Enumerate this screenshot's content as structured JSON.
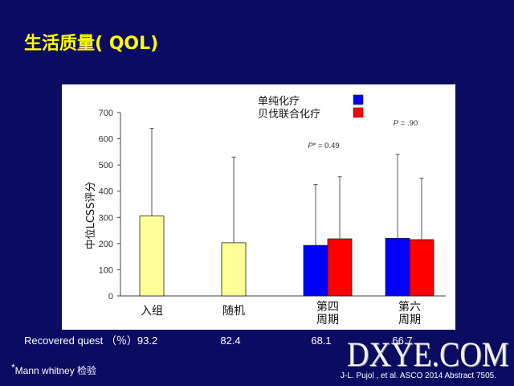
{
  "slide": {
    "title": "生活质量( QOL)",
    "colors": {
      "background": "#0b0b62",
      "title": "#ffff00",
      "panel": "#ffffff"
    }
  },
  "chart_data": {
    "type": "bar",
    "title": "",
    "xlabel": "",
    "ylabel": "中位LCSS评分",
    "ylim": [
      0,
      700
    ],
    "yticks": [
      0,
      100,
      200,
      300,
      400,
      500,
      600,
      700
    ],
    "grid": false,
    "categories": [
      "入组",
      "随机",
      "第四\n周期",
      "第六\n周期"
    ],
    "series": [
      {
        "color": "#ffff99",
        "values": [
          305,
          203,
          null,
          null
        ],
        "error_upper": [
          640,
          530,
          null,
          null
        ]
      },
      {
        "name": "单纯化疗",
        "color": "#0000ff",
        "values": [
          null,
          null,
          193,
          220
        ],
        "error_upper": [
          null,
          null,
          425,
          540
        ]
      },
      {
        "name": "贝伐联合化疗",
        "color": "#ff0000",
        "values": [
          null,
          null,
          218,
          215
        ],
        "error_upper": [
          null,
          null,
          455,
          450
        ]
      }
    ],
    "legend": {
      "position": "top-right"
    },
    "annotations": [
      {
        "category_index": 2,
        "text": "P* = 0.49"
      },
      {
        "category_index": 3,
        "text": "P = .90"
      }
    ]
  },
  "recovered": {
    "label": "Recovered quest （％）",
    "values": [
      "93.2",
      "82.4",
      "68.1",
      "66.7"
    ]
  },
  "footnote": {
    "marker": "*",
    "text": "Mann whitney 检验"
  },
  "citation": "J-L. Pujol , et al. ASCO 2014 Abstract 7505.",
  "watermark": "DXYE.COM"
}
